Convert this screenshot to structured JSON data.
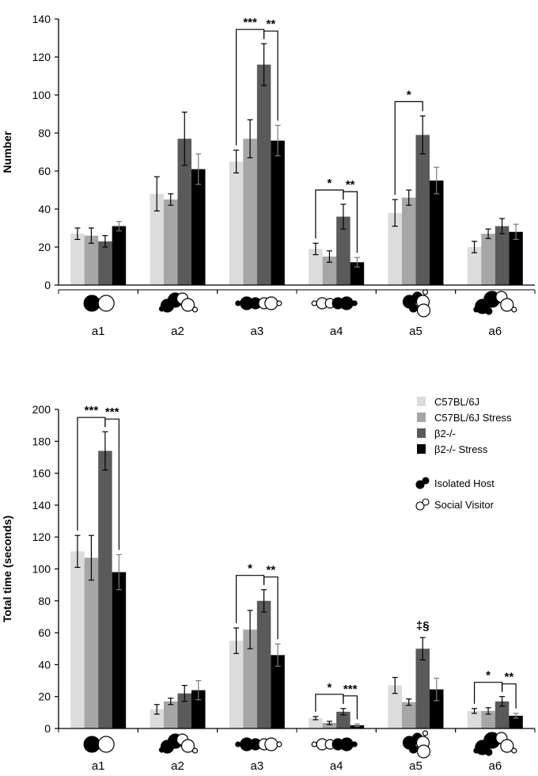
{
  "chart_data": [
    {
      "type": "bar",
      "ylabel": "Number",
      "ylim": [
        0,
        140
      ],
      "yticks": [
        0,
        20,
        40,
        60,
        80,
        100,
        120,
        140
      ],
      "categories": [
        "a1",
        "a2",
        "a3",
        "a4",
        "a5",
        "a6"
      ],
      "series": [
        {
          "name": "C57BL/6J",
          "values": [
            27,
            48,
            65,
            19,
            38,
            20
          ],
          "errors": [
            3,
            9,
            6,
            3,
            7,
            3
          ]
        },
        {
          "name": "C57BL/6J Stress",
          "values": [
            26,
            45,
            77,
            15,
            46,
            27
          ],
          "errors": [
            4,
            3,
            10,
            3,
            4,
            2.5
          ]
        },
        {
          "name": "β2-/-",
          "values": [
            23,
            77,
            116,
            36,
            79,
            31
          ],
          "errors": [
            3,
            14,
            11,
            6.5,
            10,
            4
          ]
        },
        {
          "name": "β2-/- Stress",
          "values": [
            31,
            61,
            76,
            12,
            55,
            28
          ],
          "errors": [
            2.5,
            8,
            8,
            2.5,
            7,
            4
          ]
        }
      ],
      "annotations": [
        {
          "category": "a3",
          "from_series": 0,
          "to_series": 2,
          "label": "***"
        },
        {
          "category": "a3",
          "from_series": 2,
          "to_series": 3,
          "label": "**"
        },
        {
          "category": "a4",
          "from_series": 0,
          "to_series": 2,
          "label": "*"
        },
        {
          "category": "a4",
          "from_series": 2,
          "to_series": 3,
          "label": "**"
        },
        {
          "category": "a5",
          "from_series": 0,
          "to_series": 2,
          "label": "*"
        }
      ]
    },
    {
      "type": "bar",
      "ylabel": "Total time (seconds)",
      "ylim": [
        0,
        200
      ],
      "yticks": [
        0,
        20,
        40,
        60,
        80,
        100,
        120,
        140,
        160,
        180,
        200
      ],
      "categories": [
        "a1",
        "a2",
        "a3",
        "a4",
        "a5",
        "a6"
      ],
      "series": [
        {
          "name": "C57BL/6J",
          "values": [
            111,
            12,
            55,
            6.5,
            27,
            11
          ],
          "errors": [
            10,
            3,
            8,
            1,
            5,
            1.5
          ]
        },
        {
          "name": "C57BL/6J Stress",
          "values": [
            107,
            17,
            62,
            3.5,
            16.5,
            11
          ],
          "errors": [
            14,
            2,
            12,
            1,
            2,
            2
          ]
        },
        {
          "name": "β2-/-",
          "values": [
            174,
            22,
            80,
            10.5,
            50,
            17
          ],
          "errors": [
            12,
            5,
            7,
            2,
            7,
            3
          ]
        },
        {
          "name": "β2-/- Stress",
          "values": [
            98,
            24,
            46,
            2,
            24.5,
            8
          ],
          "errors": [
            11,
            6,
            7,
            0.8,
            7,
            1.5
          ]
        }
      ],
      "annotations": [
        {
          "category": "a1",
          "from_series": 0,
          "to_series": 2,
          "label": "***"
        },
        {
          "category": "a1",
          "from_series": 2,
          "to_series": 3,
          "label": "***"
        },
        {
          "category": "a3",
          "from_series": 0,
          "to_series": 2,
          "label": "*"
        },
        {
          "category": "a3",
          "from_series": 2,
          "to_series": 3,
          "label": "**"
        },
        {
          "category": "a4",
          "from_series": 0,
          "to_series": 2,
          "label": "*"
        },
        {
          "category": "a4",
          "from_series": 2,
          "to_series": 3,
          "label": "***"
        },
        {
          "category": "a5",
          "series": 2,
          "label": "‡§"
        },
        {
          "category": "a6",
          "from_series": 0,
          "to_series": 2,
          "label": "*"
        },
        {
          "category": "a6",
          "from_series": 2,
          "to_series": 3,
          "label": "**"
        }
      ]
    }
  ],
  "legend": {
    "items": [
      {
        "label": "C57BL/6J",
        "color": "#dcdcdc"
      },
      {
        "label": "C57BL/6J Stress",
        "color": "#a6a6a6"
      },
      {
        "label": "β2-/-",
        "color": "#5a5a5a"
      },
      {
        "label": "β2-/- Stress",
        "color": "#000000"
      }
    ],
    "symbols": [
      {
        "label": "Isolated Host",
        "icon": "filled-circle-icon"
      },
      {
        "label": "Social Visitor",
        "icon": "open-circle-icon"
      }
    ]
  }
}
